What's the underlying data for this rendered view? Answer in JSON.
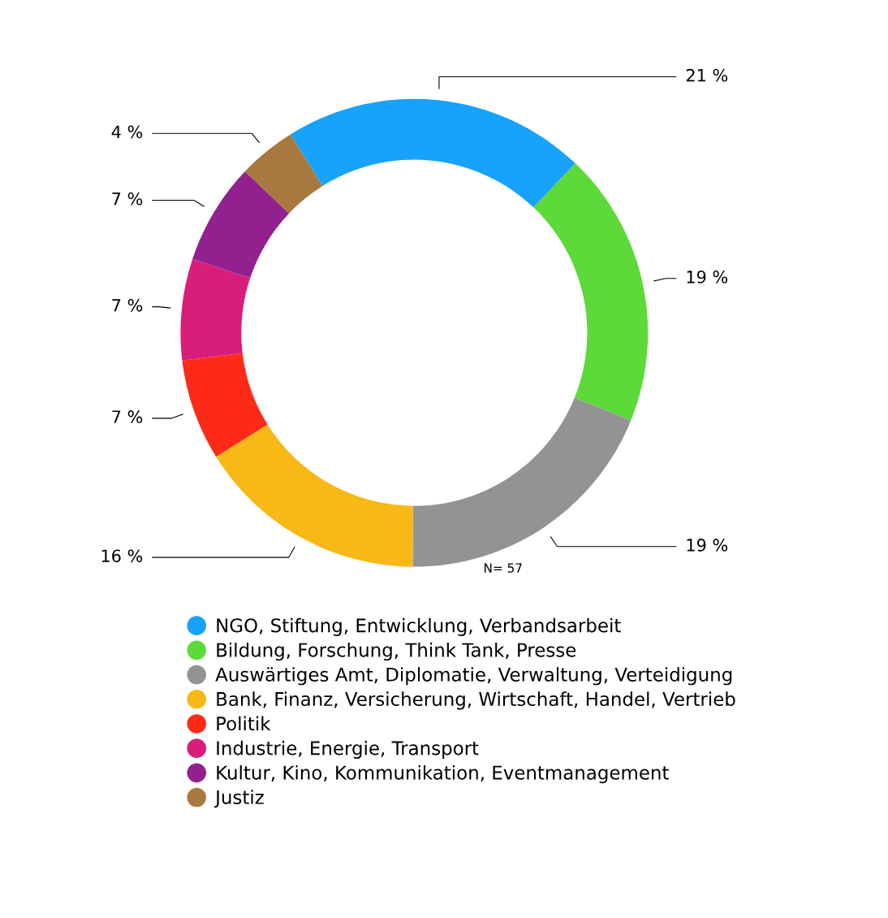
{
  "chart_data": {
    "type": "donut",
    "categories": [
      "NGO, Stiftung, Entwicklung, Verbandsarbeit",
      "Bildung, Forschung, Think Tank, Presse",
      "Auswärtiges Amt, Diplomatie, Verwaltung, Verteidigung",
      "Bank, Finanz, Versicherung, Wirtschaft, Handel, Vertrieb",
      "Politik",
      "Industrie, Energie, Transport",
      "Kultur, Kino, Kommunikation, Eventmanagement",
      "Justiz"
    ],
    "values": [
      21,
      19,
      19,
      16,
      7,
      7,
      7,
      4
    ],
    "value_labels": [
      "21 %",
      "19 %",
      "19 %",
      "16 %",
      "7 %",
      "7 %",
      "7 %",
      "4 %"
    ],
    "colors": [
      "#17a2fb",
      "#5dd93a",
      "#939393",
      "#f8b816",
      "#fe2a18",
      "#d81e7a",
      "#92218f",
      "#a8793f"
    ],
    "annotations": [
      "N= 57"
    ],
    "legend": "bottom"
  }
}
